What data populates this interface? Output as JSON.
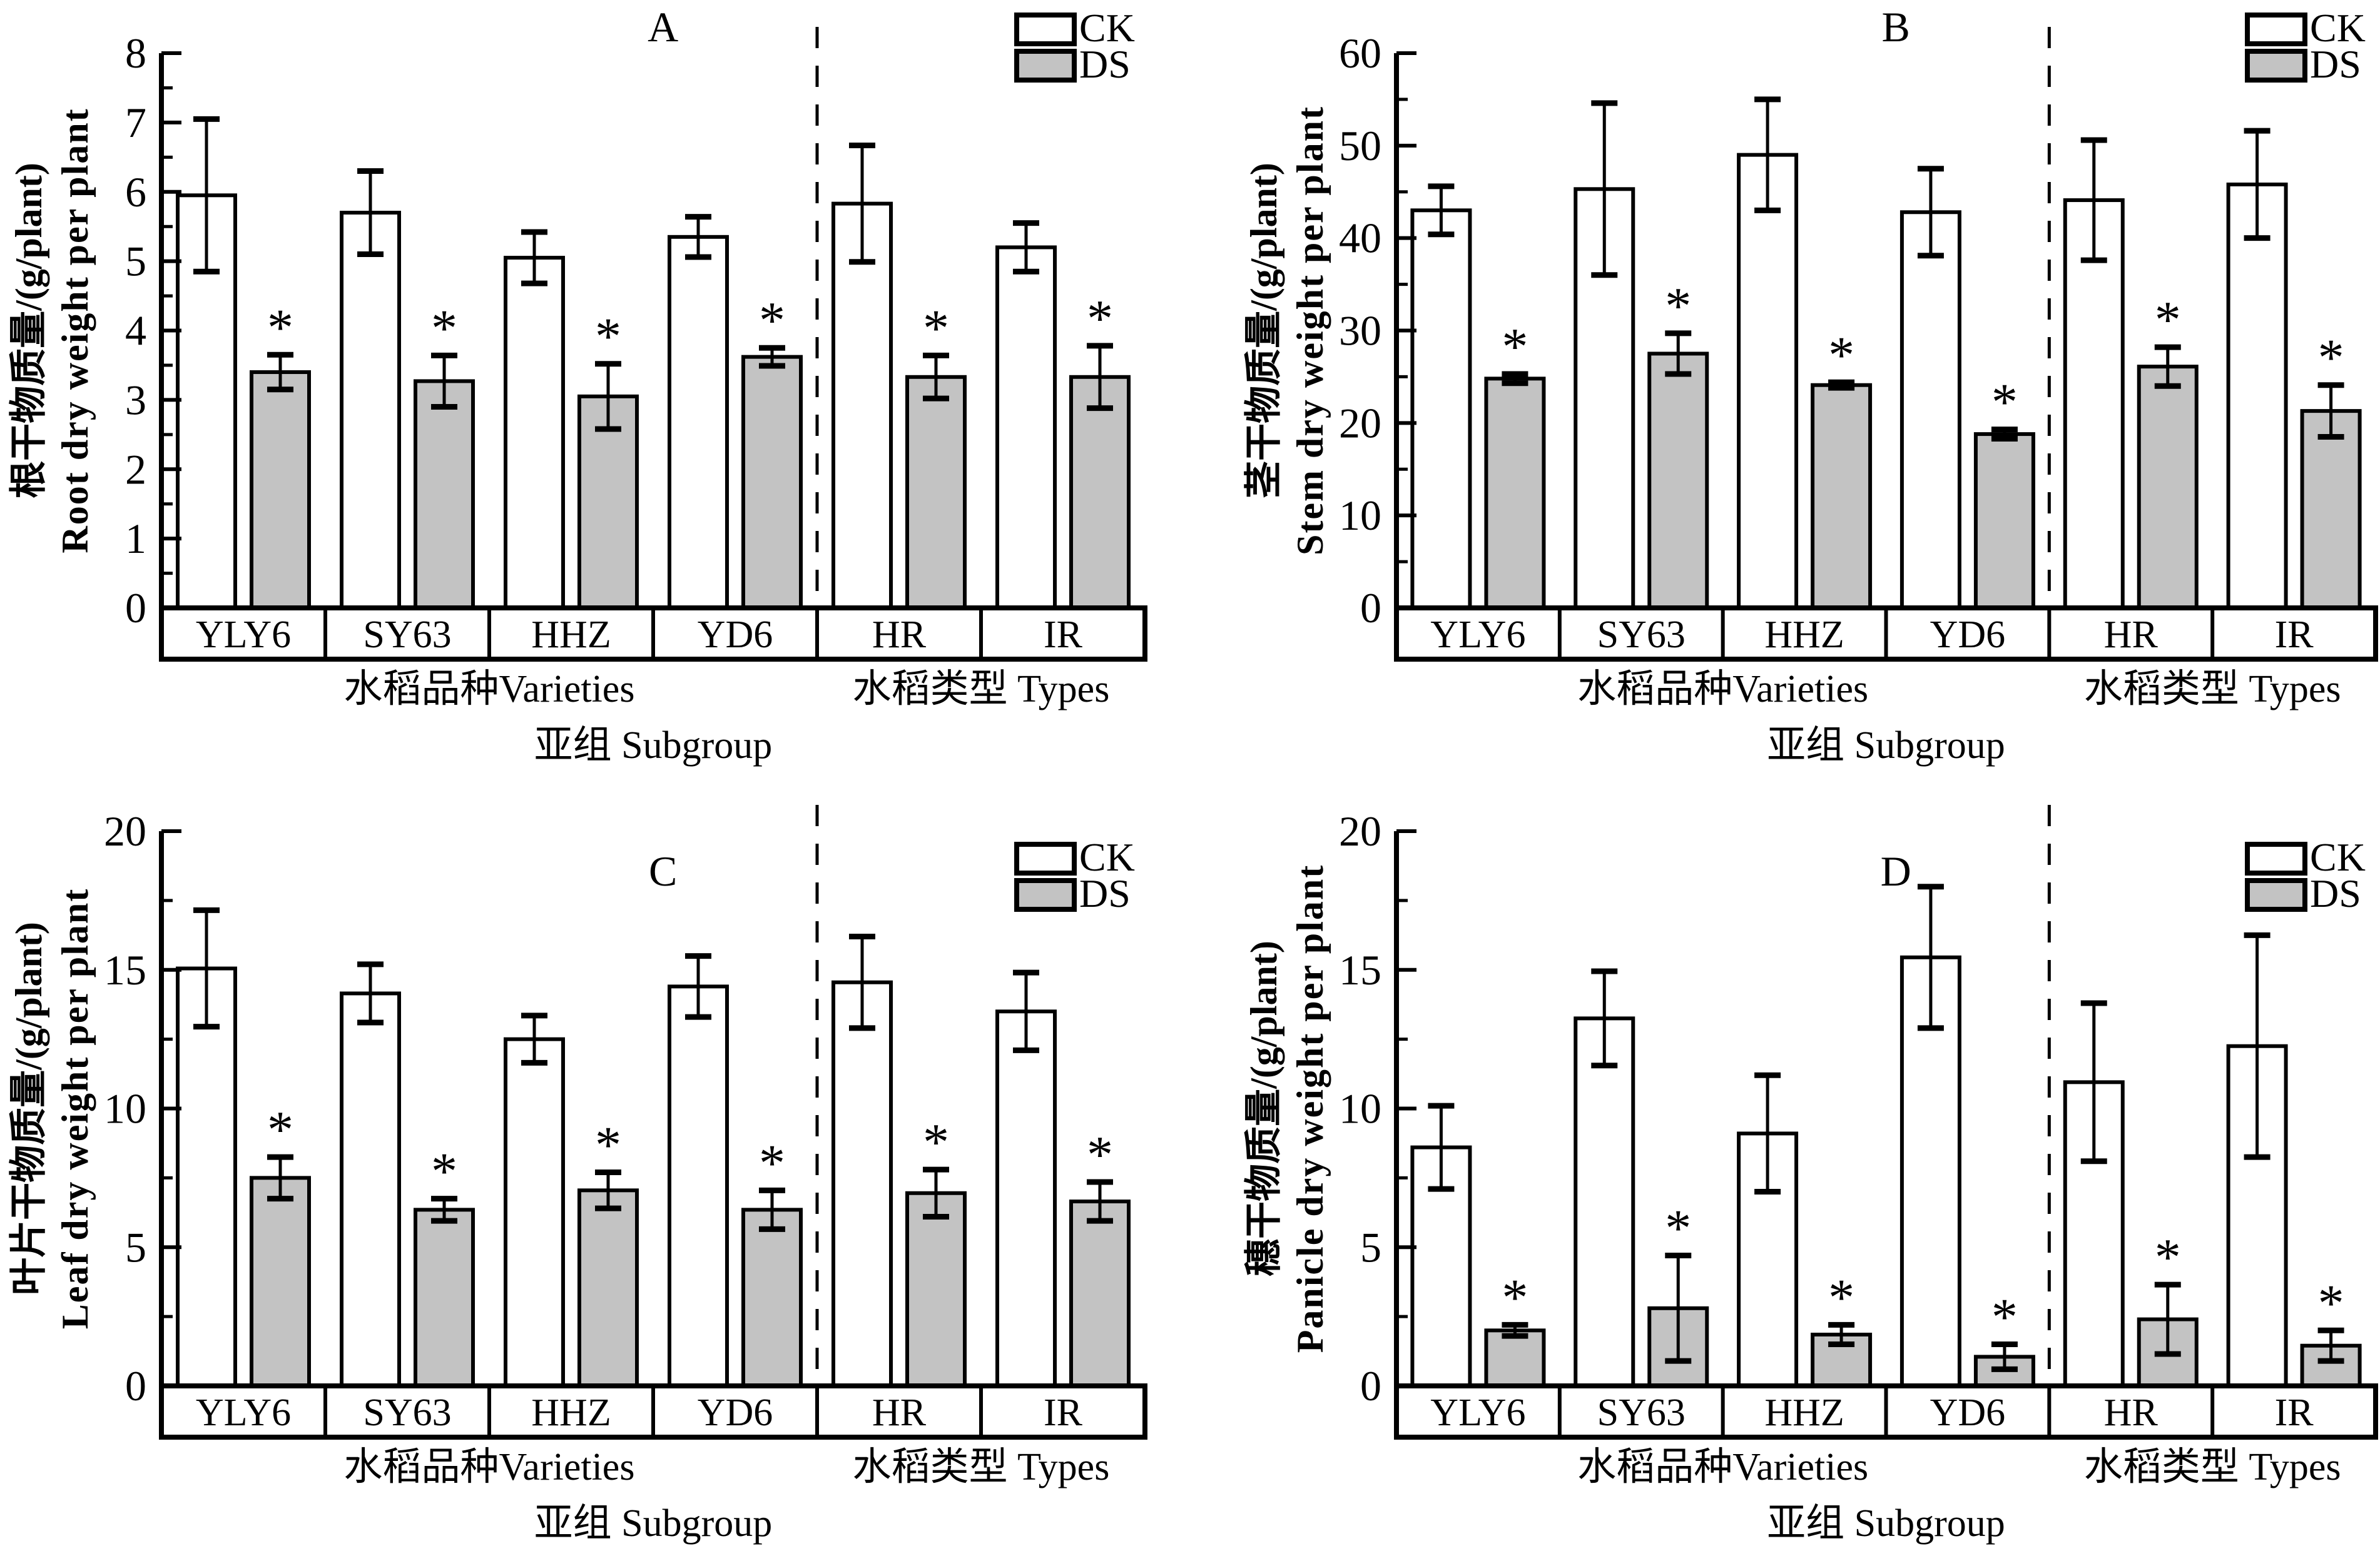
{
  "figure": {
    "legend": {
      "ck": "CK",
      "ds": "DS"
    },
    "categories": [
      "YLY6",
      "SY63",
      "HHZ",
      "YD6",
      "HR",
      "IR"
    ],
    "group_labels": {
      "varieties": "水稻品种Varieties",
      "types": "水稻类型 Types",
      "subgroup": "亚组 Subgroup"
    },
    "colors": {
      "ck_fill": "#ffffff",
      "ds_fill": "#c3c3c3",
      "line": "#000000",
      "background": "#ffffff"
    }
  },
  "chart_data": [
    {
      "type": "bar",
      "panel_label": "A",
      "ylabel_cn": "根干物质量/(g/plant)",
      "ylabel_en": "Root dry weight per plant",
      "ylim": [
        0,
        8
      ],
      "yticks": [
        0,
        1,
        2,
        3,
        4,
        5,
        6,
        7,
        8
      ],
      "minor_tick_step": 0.5,
      "grid": false,
      "legend_position": "top-right",
      "categories": [
        "YLY6",
        "SY63",
        "HHZ",
        "YD6",
        "HR",
        "IR"
      ],
      "series": [
        {
          "name": "CK",
          "values": [
            5.95,
            5.7,
            5.05,
            5.35,
            5.83,
            5.2
          ],
          "errors": [
            1.1,
            0.6,
            0.37,
            0.29,
            0.84,
            0.35
          ],
          "significant": [
            false,
            false,
            false,
            false,
            false,
            false
          ]
        },
        {
          "name": "DS",
          "values": [
            3.4,
            3.27,
            3.05,
            3.62,
            3.33,
            3.33
          ],
          "errors": [
            0.25,
            0.37,
            0.47,
            0.13,
            0.31,
            0.45
          ],
          "significant": [
            true,
            true,
            true,
            true,
            true,
            true
          ]
        }
      ]
    },
    {
      "type": "bar",
      "panel_label": "B",
      "ylabel_cn": "茎干物质量/(g/plant)",
      "ylabel_en": "Stem dry weight per plant",
      "ylim": [
        0,
        60
      ],
      "yticks": [
        0,
        10,
        20,
        30,
        40,
        50,
        60
      ],
      "minor_tick_step": 5,
      "grid": false,
      "legend_position": "top-right",
      "categories": [
        "YLY6",
        "SY63",
        "HHZ",
        "YD6",
        "HR",
        "IR"
      ],
      "series": [
        {
          "name": "CK",
          "values": [
            43.0,
            45.3,
            49.0,
            42.8,
            44.1,
            45.8
          ],
          "errors": [
            2.6,
            9.3,
            6.0,
            4.7,
            6.5,
            5.8
          ],
          "significant": [
            false,
            false,
            false,
            false,
            false,
            false
          ]
        },
        {
          "name": "DS",
          "values": [
            24.8,
            27.5,
            24.1,
            18.8,
            26.1,
            21.3
          ],
          "errors": [
            0.5,
            2.2,
            0.3,
            0.5,
            2.1,
            2.8
          ],
          "significant": [
            true,
            true,
            true,
            true,
            true,
            true
          ]
        }
      ]
    },
    {
      "type": "bar",
      "panel_label": "C",
      "ylabel_cn": "叶片干物质量/(g/plant)",
      "ylabel_en": "Leaf dry weight per plant",
      "ylim": [
        0,
        20
      ],
      "yticks": [
        0,
        5,
        10,
        15,
        20
      ],
      "minor_tick_step": 2.5,
      "grid": false,
      "legend_position": "top-right",
      "categories": [
        "YLY6",
        "SY63",
        "HHZ",
        "YD6",
        "HR",
        "IR"
      ],
      "series": [
        {
          "name": "CK",
          "values": [
            15.05,
            14.15,
            12.5,
            14.4,
            14.55,
            13.5
          ],
          "errors": [
            2.1,
            1.05,
            0.85,
            1.1,
            1.65,
            1.4
          ],
          "significant": [
            false,
            false,
            false,
            false,
            false,
            false
          ]
        },
        {
          "name": "DS",
          "values": [
            7.5,
            6.35,
            7.05,
            6.35,
            6.95,
            6.65
          ],
          "errors": [
            0.75,
            0.4,
            0.65,
            0.7,
            0.85,
            0.7
          ],
          "significant": [
            true,
            true,
            true,
            true,
            true,
            true
          ]
        }
      ]
    },
    {
      "type": "bar",
      "panel_label": "D",
      "ylabel_cn": "穗干物质量/(g/plant)",
      "ylabel_en": "Panicle dry weight per plant",
      "ylim": [
        0,
        20
      ],
      "yticks": [
        0,
        5,
        10,
        15,
        20
      ],
      "minor_tick_step": 2.5,
      "grid": false,
      "legend_position": "top-right",
      "categories": [
        "YLY6",
        "SY63",
        "HHZ",
        "YD6",
        "HR",
        "IR"
      ],
      "series": [
        {
          "name": "CK",
          "values": [
            8.6,
            13.25,
            9.1,
            15.45,
            10.95,
            12.25
          ],
          "errors": [
            1.5,
            1.7,
            2.1,
            2.55,
            2.85,
            4.0
          ],
          "significant": [
            false,
            false,
            false,
            false,
            false,
            false
          ]
        },
        {
          "name": "DS",
          "values": [
            2.0,
            2.8,
            1.85,
            1.05,
            2.4,
            1.45
          ],
          "errors": [
            0.2,
            1.9,
            0.35,
            0.45,
            1.25,
            0.55
          ],
          "significant": [
            true,
            true,
            true,
            true,
            true,
            true
          ]
        }
      ]
    }
  ]
}
